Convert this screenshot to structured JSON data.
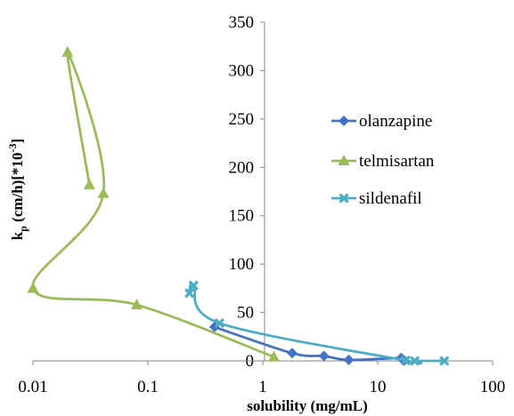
{
  "chart_data": {
    "type": "scatter",
    "xlabel": "solubility (mg/mL)",
    "ylabel": {
      "k": "k",
      "sub": "p",
      "mid": " (cm/h)[*10",
      "sup": "-3",
      "end": "]"
    },
    "x_scale": "log",
    "xlim": [
      0.01,
      100
    ],
    "ylim": [
      0,
      350
    ],
    "x_ticks": [
      "0.01",
      "0.1",
      "1",
      "10",
      "100"
    ],
    "y_ticks": [
      "0",
      "50",
      "100",
      "150",
      "200",
      "250",
      "300",
      "350"
    ],
    "grid": false,
    "legend_position": "right",
    "series": [
      {
        "name": "olanzapine",
        "color": "#4472C4",
        "marker": "diamond",
        "points": [
          [
            0.38,
            35
          ],
          [
            1.8,
            8
          ],
          [
            3.4,
            5
          ],
          [
            5.6,
            1
          ],
          [
            16,
            3
          ],
          [
            17,
            0.5
          ]
        ]
      },
      {
        "name": "telmisartan",
        "color": "#9BBB59",
        "marker": "triangle",
        "points": [
          [
            0.031,
            182
          ],
          [
            0.02,
            319
          ],
          [
            0.041,
            173
          ],
          [
            0.01,
            75
          ],
          [
            0.08,
            58
          ],
          [
            1.25,
            4
          ]
        ]
      },
      {
        "name": "sildenafil",
        "color": "#4BACC6",
        "marker": "x",
        "points": [
          [
            0.23,
            70
          ],
          [
            0.25,
            78
          ],
          [
            0.42,
            39
          ],
          [
            17.5,
            0.5
          ],
          [
            21,
            0
          ],
          [
            38,
            0
          ]
        ]
      }
    ]
  }
}
